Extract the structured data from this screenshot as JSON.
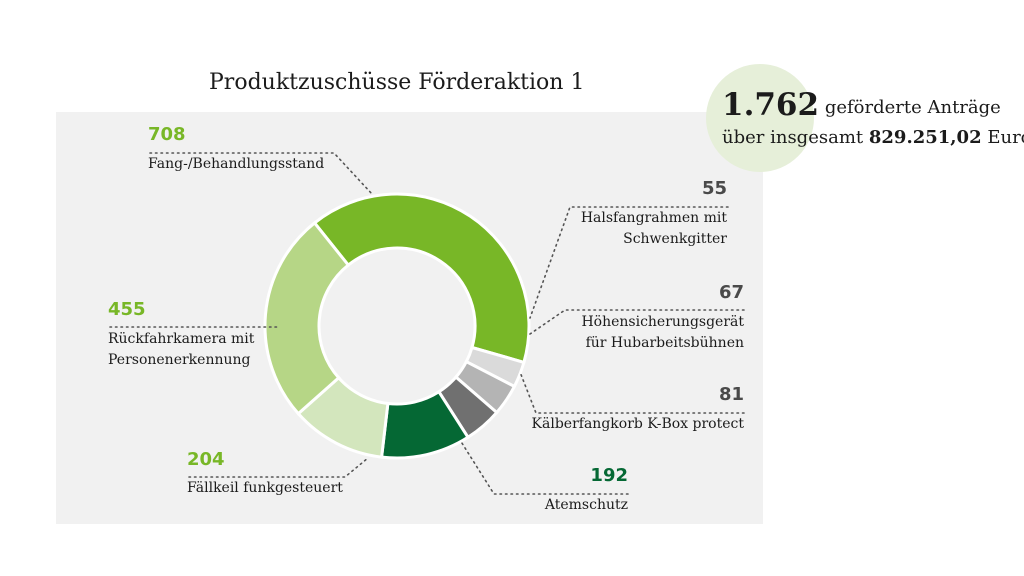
{
  "title": "Produktzuschüsse Förderaktion 1",
  "summary": {
    "count": "1.762",
    "count_text": "geförderte Anträge",
    "total_prefix": "über insgesamt",
    "total_amount": "829.251,02",
    "total_suffix": "Euro"
  },
  "chart_data": {
    "type": "pie",
    "donut": true,
    "segments": [
      {
        "label": [
          "Fang-/Behandlungsstand"
        ],
        "value": 708,
        "color": "#78b727",
        "value_color": "#78b727"
      },
      {
        "label": [
          "Halsfangrahmen mit",
          "Schwenkgitter"
        ],
        "value": 55,
        "color": "#dadada",
        "value_color": "#4a4a4a"
      },
      {
        "label": [
          "Höhensicherungsgerät",
          "für Hubarbeitsbühnen"
        ],
        "value": 67,
        "color": "#b4b4b4",
        "value_color": "#4a4a4a"
      },
      {
        "label": [
          "Kälberfangkorb K-Box protect"
        ],
        "value": 81,
        "color": "#707070",
        "value_color": "#4a4a4a"
      },
      {
        "label": [
          "Atemschutz"
        ],
        "value": 192,
        "color": "#056834",
        "value_color": "#056834"
      },
      {
        "label": [
          "Fällkeil funkgesteuert"
        ],
        "value": 204,
        "color": "#d3e6bd",
        "value_color": "#78b727"
      },
      {
        "label": [
          "Rückfahrkamera mit",
          "Personenerkennung"
        ],
        "value": 455,
        "color": "#b6d686",
        "value_color": "#78b727"
      }
    ]
  }
}
